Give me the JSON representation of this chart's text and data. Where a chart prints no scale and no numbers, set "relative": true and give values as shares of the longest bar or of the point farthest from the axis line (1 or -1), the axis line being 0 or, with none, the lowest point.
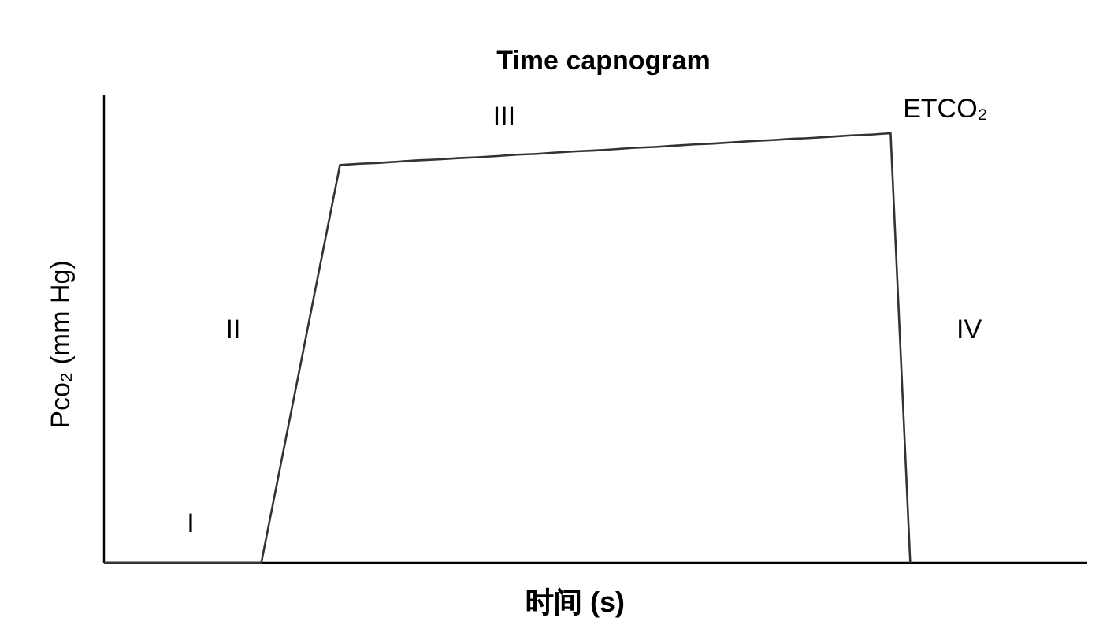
{
  "chart_data": {
    "type": "line",
    "relative": true,
    "title": "Time capnogram",
    "xlabel": "时间 (s)",
    "ylabel": "Pco₂ (mm Hg)",
    "categories": [
      null,
      null,
      null,
      null,
      null,
      null,
      null,
      null,
      null,
      null,
      null,
      null,
      null,
      null,
      null,
      null,
      null,
      null,
      null,
      null,
      null,
      null,
      null,
      null,
      null,
      null,
      null,
      null,
      null,
      null,
      null,
      null,
      null,
      null,
      null,
      null,
      null,
      null,
      null,
      null,
      null,
      null,
      null,
      null,
      null,
      null,
      null,
      null,
      null,
      null,
      null
    ],
    "series": [
      {
        "color": "#333333",
        "values": [
          0,
          0,
          0,
          0,
          0,
          0,
          0,
          0,
          0,
          0.232,
          0.463,
          0.695,
          0.926,
          0.929,
          0.931,
          0.934,
          0.937,
          0.939,
          0.942,
          0.944,
          0.947,
          0.95,
          0.952,
          0.955,
          0.958,
          0.96,
          0.963,
          0.966,
          0.968,
          0.971,
          0.974,
          0.976,
          0.979,
          0.982,
          0.984,
          0.987,
          0.989,
          0.992,
          0.995,
          0.997,
          1,
          0,
          null,
          null,
          null,
          null,
          null,
          null,
          null,
          null,
          null
        ]
      }
    ],
    "annotations": [
      "I",
      "II",
      "III",
      "IV",
      "ETCO₂"
    ],
    "marker": "none",
    "line_style": "solid"
  }
}
